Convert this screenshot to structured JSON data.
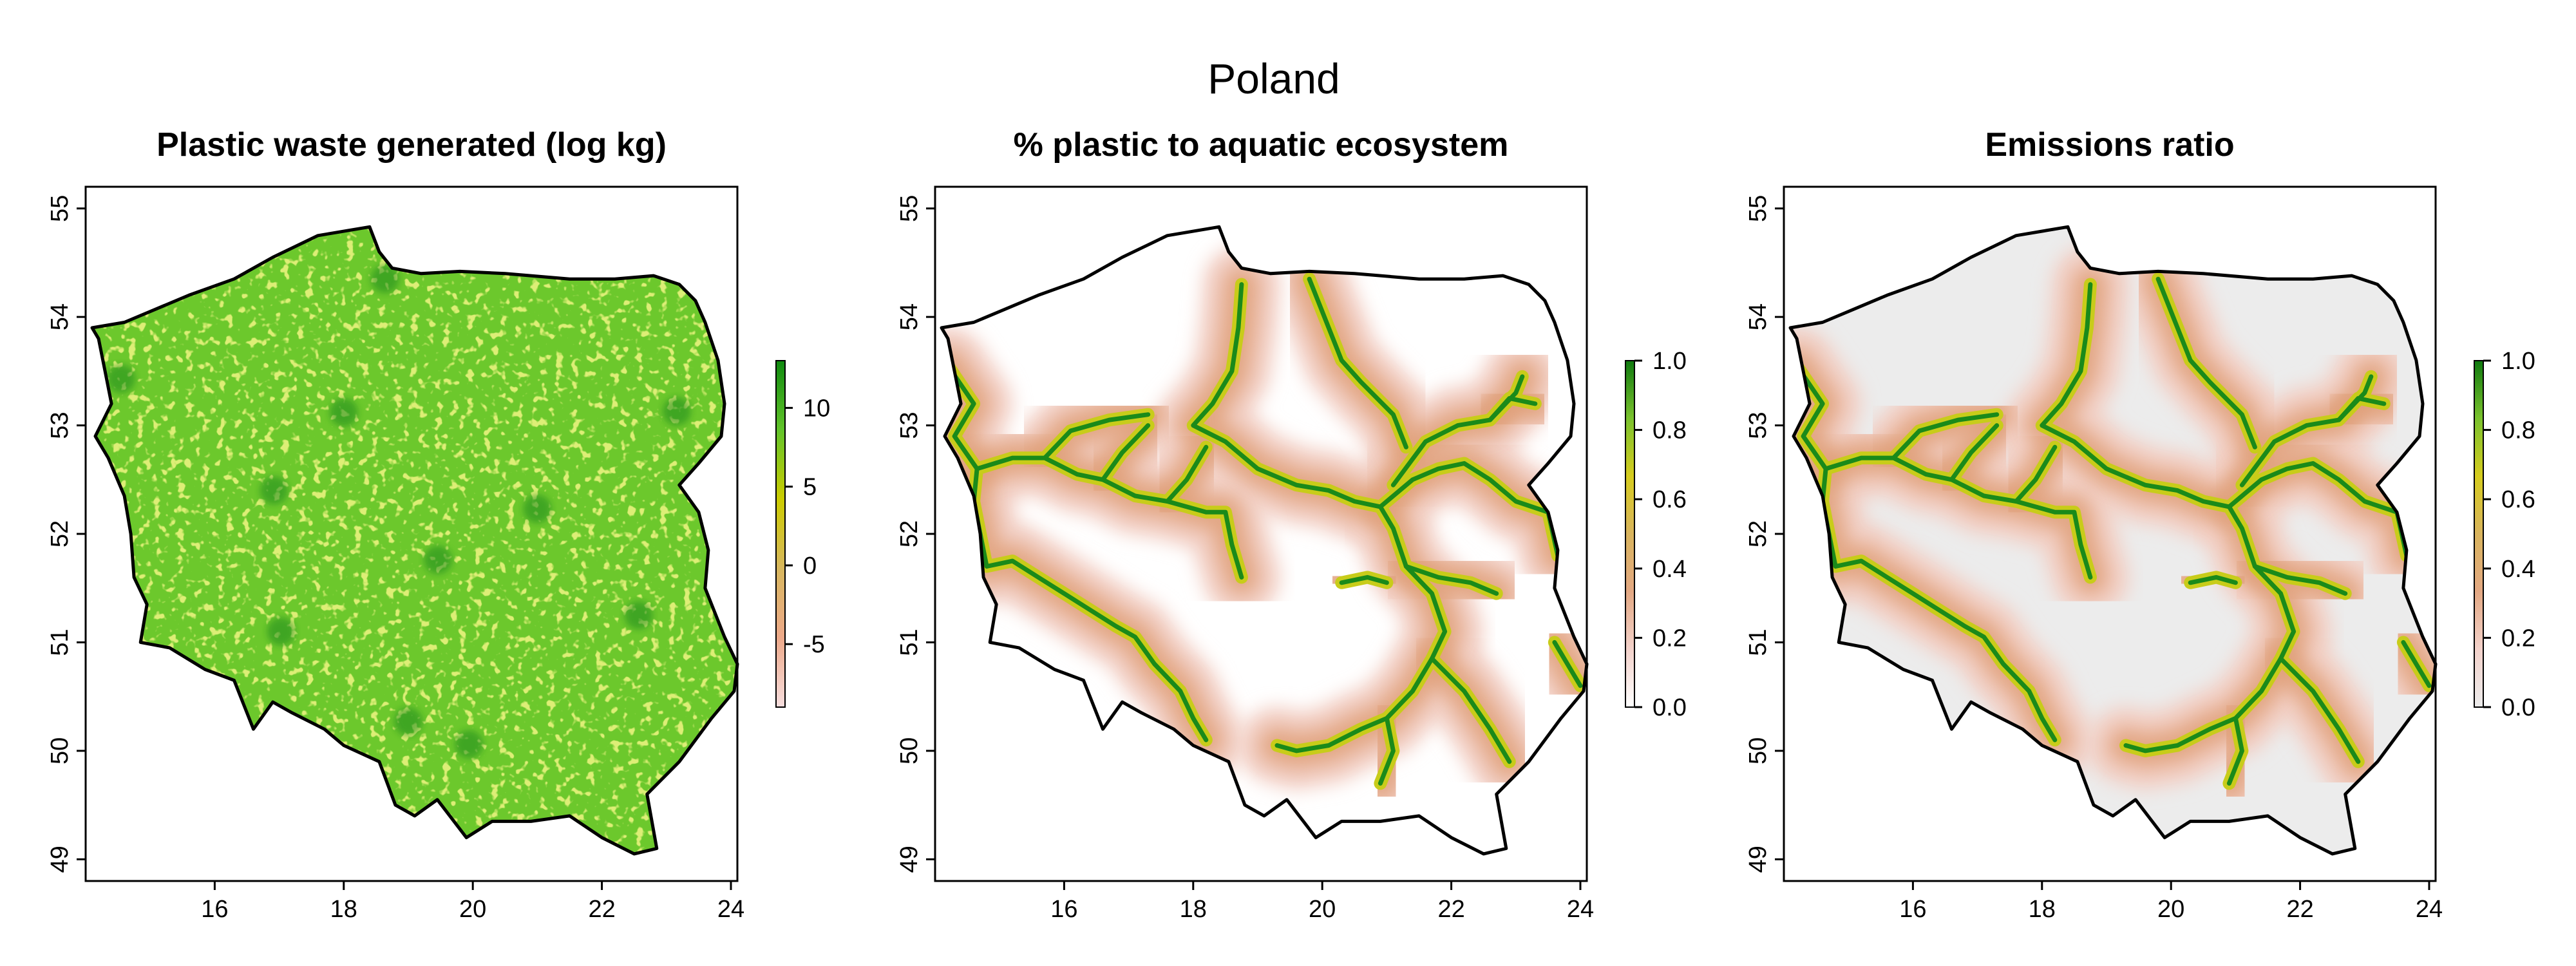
{
  "title": "Poland",
  "panels": [
    {
      "title": "Plastic waste generated (log kg)",
      "style": "generated",
      "legend": {
        "min": -9,
        "max": 13,
        "ticks": [
          10,
          5,
          0,
          -5
        ],
        "colors": [
          "#f7dede",
          "#eda98a",
          "#d8b75e",
          "#cccc00",
          "#62c42a",
          "#0f8a0f"
        ]
      }
    },
    {
      "title": "% plastic to aquatic ecosystem",
      "style": "aquatic",
      "legend": {
        "min": 0.0,
        "max": 1.0,
        "ticks": [
          "1.0",
          "0.8",
          "0.6",
          "0.4",
          "0.2",
          "0.0"
        ],
        "colors": [
          "#ffffff",
          "#f3d2cb",
          "#e3a883",
          "#d9b45d",
          "#d6cc1e",
          "#7ac22d",
          "#0f7a0f"
        ]
      }
    },
    {
      "title": "Emissions ratio",
      "style": "emissions",
      "legend": {
        "min": 0.0,
        "max": 1.0,
        "ticks": [
          "1.0",
          "0.8",
          "0.6",
          "0.4",
          "0.2",
          "0.0"
        ],
        "colors": [
          "#ececec",
          "#f3d2cb",
          "#e3a883",
          "#d9b45d",
          "#d6cc1e",
          "#7ac22d",
          "#0f7a0f"
        ]
      }
    }
  ],
  "axes": {
    "x_ticks": [
      "16",
      "18",
      "20",
      "22",
      "24"
    ],
    "y_ticks": [
      "49",
      "50",
      "51",
      "52",
      "53",
      "54",
      "55"
    ],
    "xlim": [
      14.0,
      24.1
    ],
    "ylim": [
      48.8,
      55.2
    ]
  },
  "colors": {
    "background": "#ffffff",
    "outline": "#000000",
    "land_generated": "#6cc82c",
    "land_aquatic": "#ffffff",
    "land_emissions": "#ececec",
    "river_core": "#1a8a1a",
    "river_mid": "#c8cc1a",
    "river_halo": "#e0a07a",
    "river_outer": "#f2cfc4"
  }
}
